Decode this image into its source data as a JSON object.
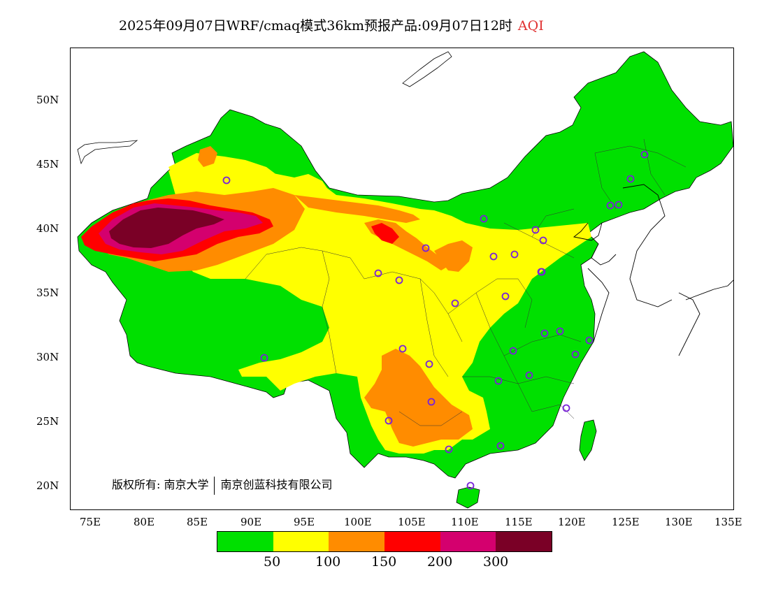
{
  "title": {
    "main": "2025年09月07日WRF/cmaq模式36km预报产品:09月07日12时",
    "pollutant": "AQI",
    "pollutant_color": "#e03030"
  },
  "map": {
    "lat_range": [
      18,
      54
    ],
    "lon_range": [
      73,
      135
    ],
    "lat_ticks": [
      "50N",
      "45N",
      "40N",
      "35N",
      "30N",
      "25N",
      "20N"
    ],
    "lon_ticks": [
      "75E",
      "80E",
      "85E",
      "90E",
      "95E",
      "100E",
      "105E",
      "110E",
      "115E",
      "120E",
      "125E",
      "130E",
      "135E"
    ],
    "city_markers": "purple-circle-icon"
  },
  "copyright": {
    "owner1": "版权所有: 南京大学",
    "owner2": "南京创蓝科技有限公司"
  },
  "legend": {
    "colors": [
      "#00e000",
      "#ffff00",
      "#ff8c00",
      "#ff0000",
      "#d4006e",
      "#7a0026"
    ],
    "labels": [
      "50",
      "100",
      "150",
      "200",
      "300"
    ]
  }
}
